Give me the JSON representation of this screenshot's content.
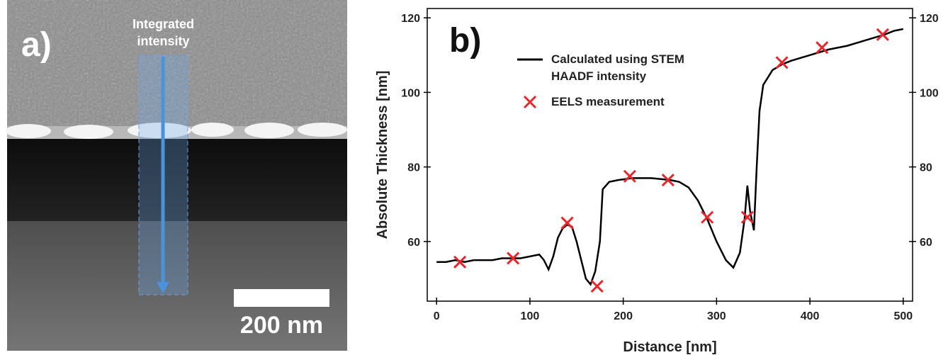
{
  "panel_a": {
    "label": "a)",
    "annotation": "Integrated intensity",
    "scale_bar": "200 nm"
  },
  "chart_data": {
    "type": "line",
    "panel_label": "b)",
    "x_label": "Distance [nm]",
    "y_label": "Absolute Thickness [nm]",
    "xlim": [
      -10,
      510
    ],
    "xticks": [
      0,
      100,
      200,
      300,
      400,
      500
    ],
    "ylim": [
      44,
      122.5
    ],
    "yticks": [
      60,
      80,
      100,
      120
    ],
    "y2lim": [
      44,
      122.5
    ],
    "y2ticks": [
      60,
      80,
      100,
      120
    ],
    "grid": false,
    "legend": "upper left",
    "series": [
      {
        "name": "Calculated using STEM HAADF intensity",
        "color": "#000000",
        "marker": "line",
        "x": [
          0,
          10,
          20,
          30,
          40,
          50,
          60,
          70,
          80,
          90,
          100,
          110,
          115,
          120,
          125,
          130,
          135,
          140,
          145,
          150,
          155,
          160,
          165,
          170,
          175,
          178,
          185,
          195,
          210,
          230,
          250,
          260,
          270,
          280,
          290,
          300,
          310,
          318,
          325,
          330,
          333,
          336,
          340,
          343,
          346,
          350,
          360,
          370,
          380,
          400,
          420,
          440,
          460,
          480,
          490,
          500
        ],
        "values": [
          54.5,
          54.5,
          55,
          54.5,
          55,
          55,
          55,
          55.5,
          55.5,
          55.5,
          56,
          56.5,
          55,
          52.5,
          56,
          61,
          63.5,
          64.5,
          64,
          60,
          55,
          50,
          48.5,
          52,
          60,
          74,
          76,
          76.5,
          77,
          77,
          76.5,
          76,
          74.5,
          71,
          66,
          60,
          55,
          53,
          57,
          66,
          75,
          68,
          63,
          80,
          95,
          102,
          106,
          107.5,
          108.5,
          110,
          111.5,
          112.5,
          114,
          115.5,
          116.5,
          117
        ]
      },
      {
        "name": "EELS measurement",
        "color": "#e8262b",
        "marker": "x",
        "x": [
          25,
          82,
          140,
          172,
          207,
          248,
          290,
          333,
          370,
          413,
          478
        ],
        "values": [
          54.5,
          55.5,
          65,
          48,
          77.5,
          76.5,
          66.5,
          66.5,
          108,
          112,
          115.5
        ]
      }
    ]
  }
}
